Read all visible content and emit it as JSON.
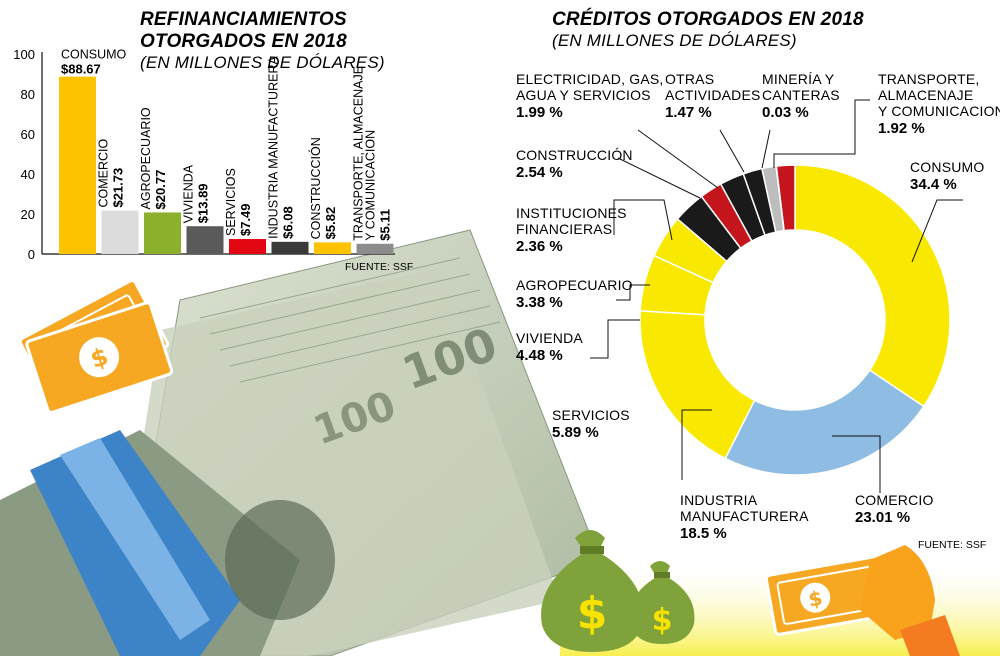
{
  "chart_data": [
    {
      "type": "bar",
      "title": "REFINANCIAMIENTOS OTORGADOS EN 2018",
      "title_lines": [
        "REFINANCIAMIENTOS",
        "OTORGADOS EN 2018"
      ],
      "subtitle": "(EN MILLONES DE DÓLARES)",
      "source": "FUENTE: SSF",
      "ylim": [
        0,
        100
      ],
      "yticks": [
        0,
        20,
        40,
        60,
        80,
        100
      ],
      "grid": false,
      "categories": [
        "CONSUMO",
        "COMERCIO",
        "AGROPECUARIO",
        "VIVIENDA",
        "SERVICIOS",
        "INDUSTRIA MANUFACTURERA",
        "CONSTRUCCIÓN",
        "TRANSPORTE, ALMACENAJE Y COMUNICACION"
      ],
      "category_lines": [
        [
          "CONSUMO"
        ],
        [
          "COMERCIO"
        ],
        [
          "AGROPECUARIO"
        ],
        [
          "VIVIENDA"
        ],
        [
          "SERVICIOS"
        ],
        [
          "INDUSTRIA MANUFACTURERA"
        ],
        [
          "CONSTRUCCIÓN"
        ],
        [
          "TRANSPORTE, ALMACENAJE",
          "Y COMUNICACION"
        ]
      ],
      "values": [
        88.67,
        21.73,
        20.77,
        13.89,
        7.49,
        6.08,
        5.82,
        5.11
      ],
      "value_labels": [
        "$88.67",
        "$21.73",
        "$20.77",
        "$13.89",
        "$7.49",
        "$6.08",
        "$5.82",
        "$5.11"
      ],
      "colors": [
        "#FDC300",
        "#DCDCDC",
        "#8DB02C",
        "#5A5A5A",
        "#E30613",
        "#3A3A3A",
        "#FDC300",
        "#8C8C8C"
      ]
    },
    {
      "type": "pie",
      "style": "donut",
      "title": "CRÉDITOS OTORGADOS EN 2018",
      "subtitle": "(EN MILLONES DE DÓLARES)",
      "source": "FUENTE: SSF",
      "slices": [
        {
          "label": "CONSUMO",
          "label_lines": [
            "CONSUMO"
          ],
          "value": 34.4,
          "value_label": "34.4 %",
          "color": "#F9E800"
        },
        {
          "label": "COMERCIO",
          "label_lines": [
            "COMERCIO"
          ],
          "value": 23.01,
          "value_label": "23.01 %",
          "color": "#8FBCE3"
        },
        {
          "label": "INDUSTRIA MANUFACTURERA",
          "label_lines": [
            "INDUSTRIA",
            "MANUFACTURERA"
          ],
          "value": 18.5,
          "value_label": "18.5 %",
          "color": "#F9E800"
        },
        {
          "label": "SERVICIOS",
          "label_lines": [
            "SERVICIOS"
          ],
          "value": 5.89,
          "value_label": "5.89 %",
          "color": "#F9E800"
        },
        {
          "label": "VIVIENDA",
          "label_lines": [
            "VIVIENDA"
          ],
          "value": 4.48,
          "value_label": "4.48 %",
          "color": "#F9E800"
        },
        {
          "label": "AGROPECUARIO",
          "label_lines": [
            "AGROPECUARIO"
          ],
          "value": 3.38,
          "value_label": "3.38 %",
          "color": "#1A1A1A"
        },
        {
          "label": "INSTITUCIONES FINANCIERAS",
          "label_lines": [
            "INSTITUCIONES",
            "FINANCIERAS"
          ],
          "value": 2.36,
          "value_label": "2.36 %",
          "color": "#C4161C"
        },
        {
          "label": "CONSTRUCCIÓN",
          "label_lines": [
            "CONSTRUCCIÓN"
          ],
          "value": 2.54,
          "value_label": "2.54 %",
          "color": "#1A1A1A"
        },
        {
          "label": "ELECTRICIDAD, GAS, AGUA Y SERVICIOS",
          "label_lines": [
            "ELECTRICIDAD, GAS,",
            "AGUA Y SERVICIOS"
          ],
          "value": 1.99,
          "value_label": "1.99 %",
          "color": "#1A1A1A"
        },
        {
          "label": "OTRAS ACTIVIDADES",
          "label_lines": [
            "OTRAS",
            "ACTIVIDADES"
          ],
          "value": 1.47,
          "value_label": "1.47 %",
          "color": "#BDBDBD"
        },
        {
          "label": "MINERÍA Y CANTERAS",
          "label_lines": [
            "MINERÍA Y",
            "CANTERAS"
          ],
          "value": 0.03,
          "value_label": "0.03 %",
          "color": "#1A1A1A"
        },
        {
          "label": "TRANSPORTE, ALMACENAJE Y COMUNICACION",
          "label_lines": [
            "TRANSPORTE,",
            "ALMACENAJE",
            "Y COMUNICACION"
          ],
          "value": 1.92,
          "value_label": "1.92 %",
          "color": "#C4161C"
        }
      ]
    }
  ],
  "illustration": {
    "icons": [
      "money-bills-icon",
      "money-bag-icon",
      "money-bag-small-icon",
      "hand-holding-bill-icon",
      "cash-stack-icon"
    ],
    "dollar_sign": "$",
    "bill_denomination": "100",
    "accent_color": "#F7A823",
    "bag_color": "#7FA23A"
  }
}
